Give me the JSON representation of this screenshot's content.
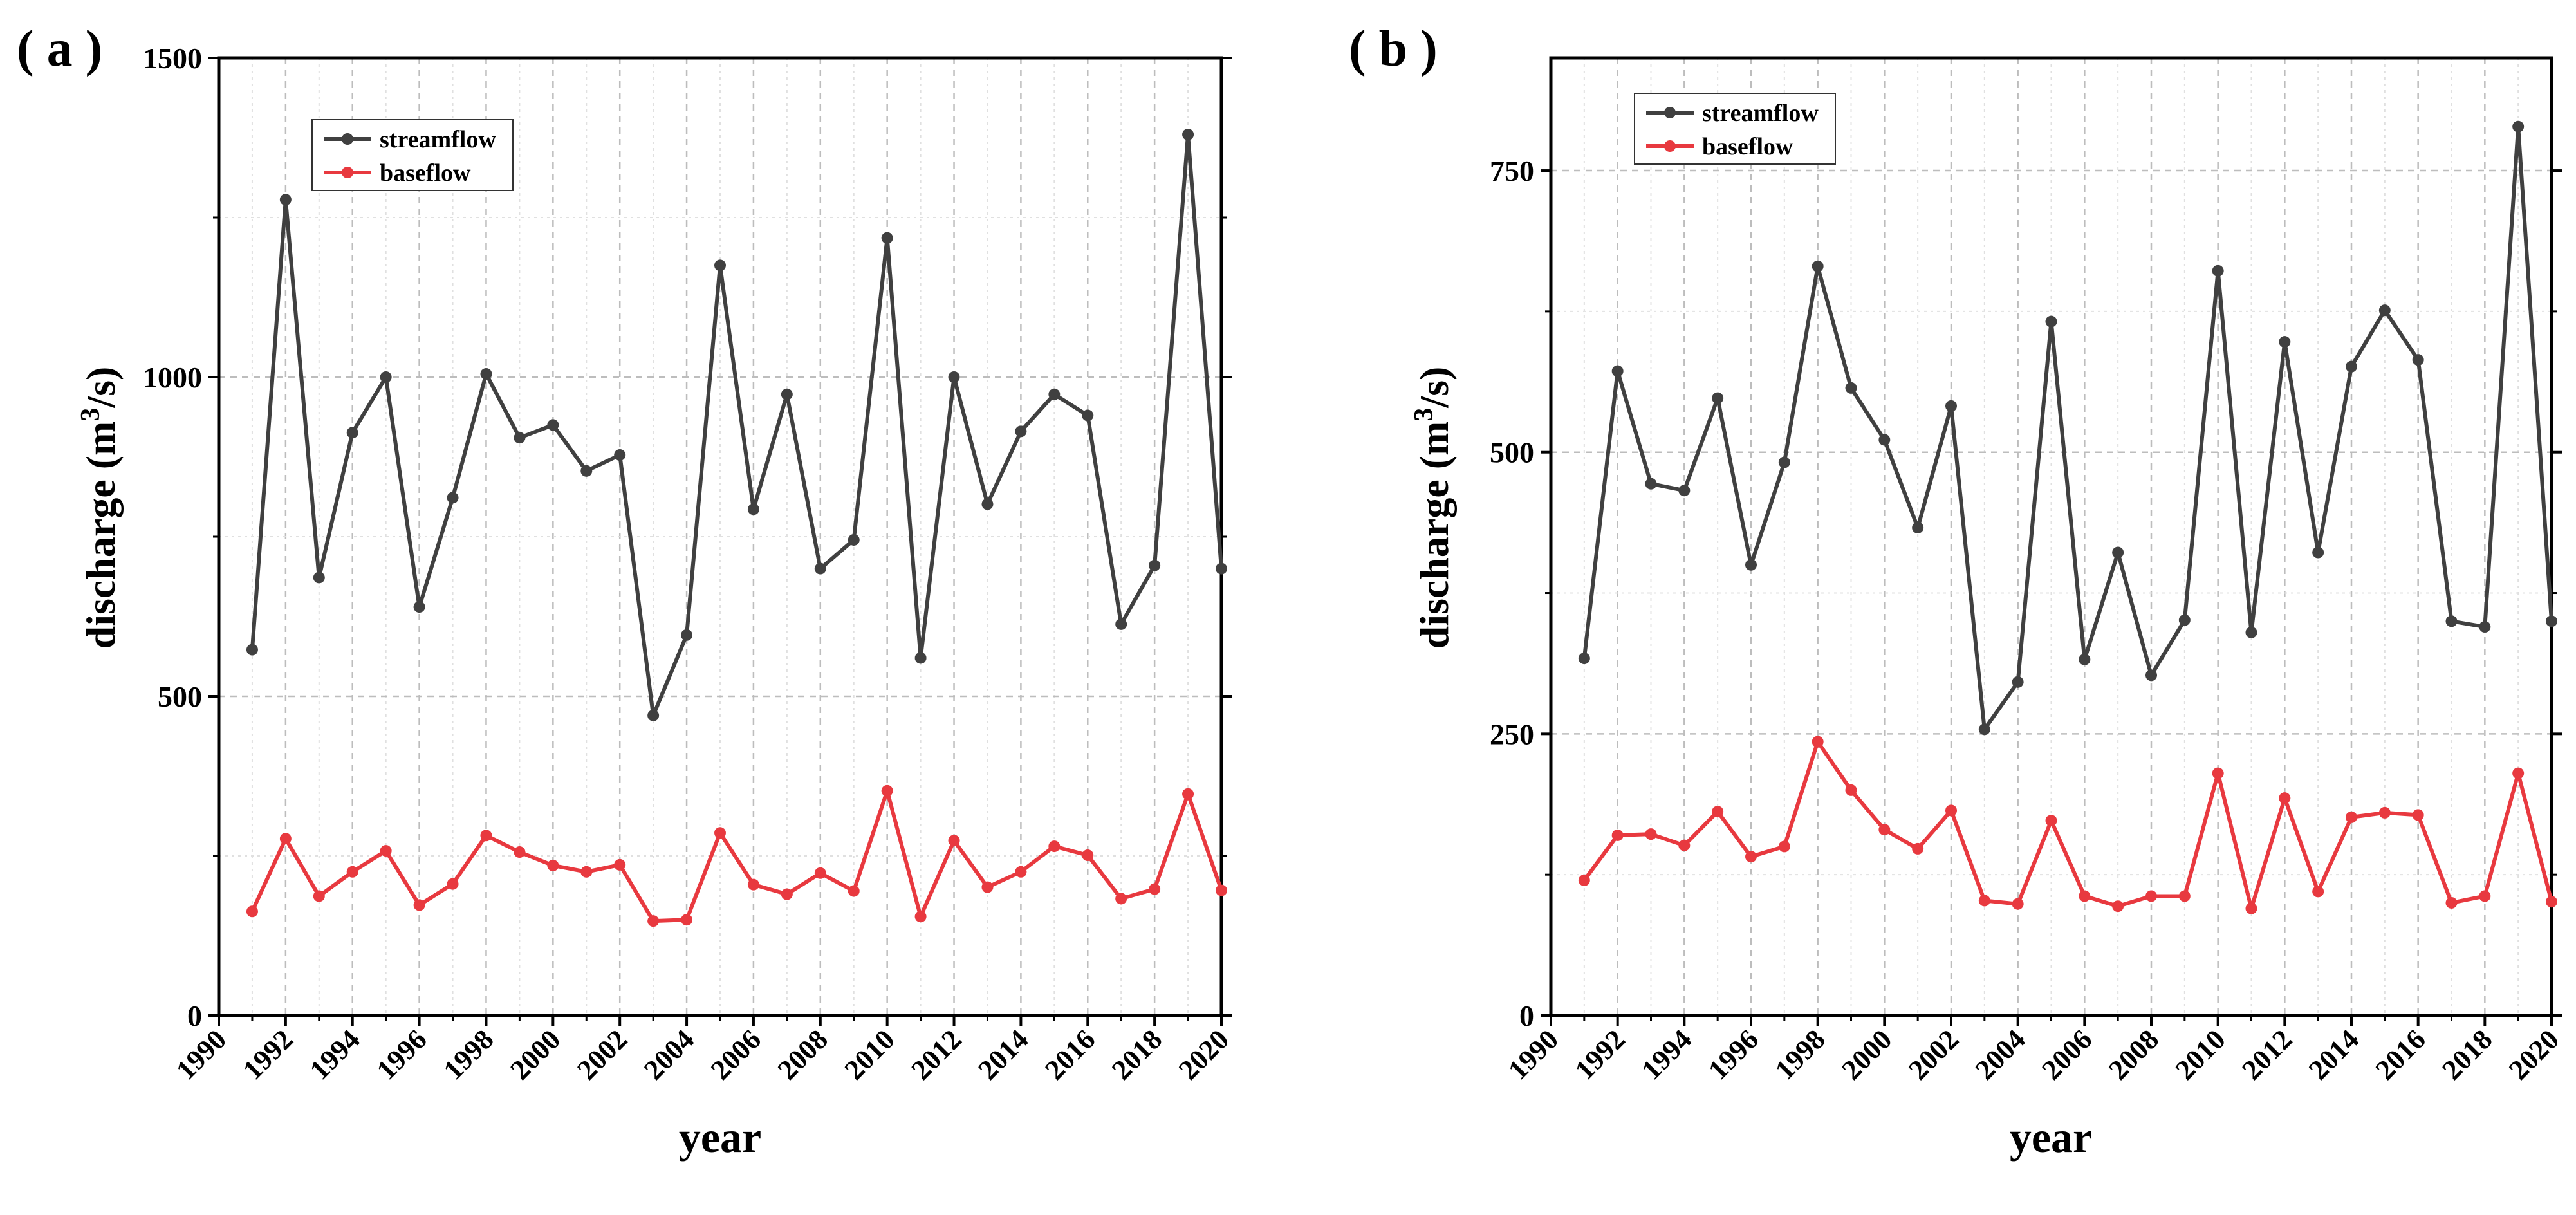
{
  "chart_data": [
    {
      "panel_label": "( a )",
      "type": "line",
      "xlabel": "year",
      "ylabel": "discharge (m³/s)",
      "ylabel_main": "discharge (m",
      "ylabel_sup": "3",
      "ylabel_tail": "/s)",
      "xlim": [
        1990,
        2020
      ],
      "ylim": [
        0,
        1500
      ],
      "yticks": [
        0,
        500,
        1000,
        1500
      ],
      "xticks": [
        1990,
        1992,
        1994,
        1996,
        1998,
        2000,
        2002,
        2004,
        2006,
        2008,
        2010,
        2012,
        2014,
        2016,
        2018,
        2020
      ],
      "grid": true,
      "legend_position": "top-left",
      "x": [
        1991,
        1992,
        1993,
        1994,
        1995,
        1996,
        1997,
        1998,
        1999,
        2000,
        2001,
        2002,
        2003,
        2004,
        2005,
        2006,
        2007,
        2008,
        2009,
        2010,
        2011,
        2012,
        2013,
        2014,
        2015,
        2016,
        2017,
        2018,
        2019,
        2020
      ],
      "series": [
        {
          "name": "streamflow",
          "color": "#404040",
          "values": [
            573,
            1278,
            686,
            913,
            1000,
            640,
            811,
            1005,
            905,
            925,
            853,
            878,
            470,
            596,
            1175,
            793,
            973,
            700,
            745,
            1218,
            560,
            1000,
            801,
            915,
            973,
            940,
            613,
            705,
            1380,
            700
          ]
        },
        {
          "name": "baseflow",
          "color": "#e8393f",
          "values": [
            163,
            277,
            187,
            225,
            258,
            173,
            206,
            282,
            256,
            235,
            225,
            236,
            148,
            150,
            286,
            205,
            190,
            223,
            195,
            352,
            155,
            274,
            201,
            225,
            265,
            251,
            183,
            198,
            347,
            196
          ]
        }
      ]
    },
    {
      "panel_label": "( b )",
      "type": "line",
      "xlabel": "year",
      "ylabel": "discharge (m³/s)",
      "ylabel_main": "discharge (m",
      "ylabel_sup": "3",
      "ylabel_tail": "/s)",
      "xlim": [
        1990,
        2020
      ],
      "ylim": [
        0,
        850
      ],
      "yticks": [
        0,
        250,
        500,
        750
      ],
      "xticks": [
        1990,
        1992,
        1994,
        1996,
        1998,
        2000,
        2002,
        2004,
        2006,
        2008,
        2010,
        2012,
        2014,
        2016,
        2018,
        2020
      ],
      "grid": true,
      "legend_position": "top-left",
      "x": [
        1991,
        1992,
        1993,
        1994,
        1995,
        1996,
        1997,
        1998,
        1999,
        2000,
        2001,
        2002,
        2003,
        2004,
        2005,
        2006,
        2007,
        2008,
        2009,
        2010,
        2011,
        2012,
        2013,
        2014,
        2015,
        2016,
        2017,
        2018,
        2019,
        2020
      ],
      "series": [
        {
          "name": "streamflow",
          "color": "#404040",
          "values": [
            317,
            572,
            472,
            466,
            548,
            400,
            491,
            665,
            557,
            511,
            433,
            541,
            254,
            296,
            616,
            316,
            411,
            302,
            351,
            661,
            340,
            598,
            411,
            576,
            626,
            582,
            350,
            345,
            789,
            350
          ]
        },
        {
          "name": "baseflow",
          "color": "#e8393f",
          "values": [
            120,
            160,
            161,
            151,
            181,
            141,
            150,
            243,
            200,
            165,
            148,
            182,
            102,
            99,
            173,
            106,
            97,
            106,
            106,
            215,
            95,
            193,
            110,
            176,
            180,
            178,
            100,
            106,
            215,
            101
          ]
        }
      ]
    }
  ]
}
